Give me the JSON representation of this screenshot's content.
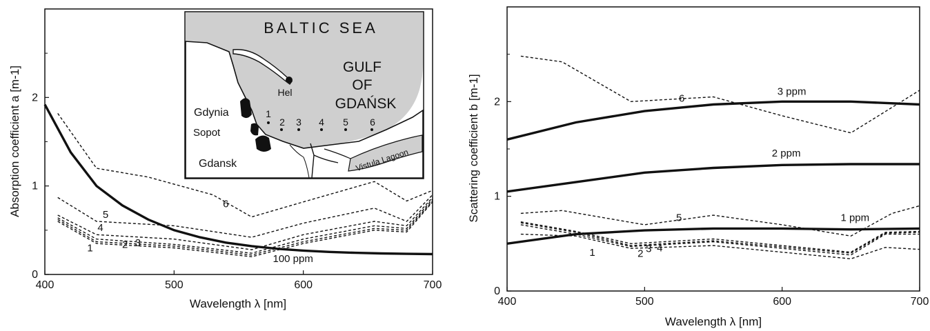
{
  "chart_data": [
    {
      "type": "line",
      "xlabel": "Wavelength  λ  [nm]",
      "ylabel": "Absorption coefficient  a   [m-1]",
      "xlim": [
        400,
        700
      ],
      "ylim": [
        0,
        3
      ],
      "xticks": [
        "400",
        "500",
        "600",
        "700"
      ],
      "yticks": [
        "0",
        "1",
        "2"
      ],
      "grid": false,
      "series": [
        {
          "name": "100 ppm",
          "style": "solid-thick",
          "label_at": [
            592,
            0.14
          ],
          "x": [
            400,
            420,
            440,
            460,
            480,
            500,
            520,
            540,
            560,
            580,
            600,
            620,
            640,
            660,
            680,
            700
          ],
          "y": [
            1.92,
            1.38,
            1.0,
            0.78,
            0.62,
            0.5,
            0.42,
            0.36,
            0.32,
            0.29,
            0.27,
            0.255,
            0.245,
            0.238,
            0.233,
            0.23
          ]
        },
        {
          "name": "1",
          "style": "dashed",
          "label_at": [
            435,
            0.26
          ],
          "x": [
            410,
            440,
            500,
            560,
            600,
            655,
            680,
            700
          ],
          "y": [
            0.6,
            0.35,
            0.3,
            0.2,
            0.35,
            0.5,
            0.48,
            0.82
          ]
        },
        {
          "name": "2",
          "style": "dashed",
          "label_at": [
            462,
            0.3
          ],
          "x": [
            410,
            440,
            500,
            560,
            600,
            655,
            680,
            700
          ],
          "y": [
            0.62,
            0.37,
            0.32,
            0.22,
            0.37,
            0.52,
            0.5,
            0.83
          ]
        },
        {
          "name": "3",
          "style": "dashed",
          "label_at": [
            472,
            0.32
          ],
          "x": [
            410,
            440,
            500,
            560,
            600,
            655,
            680,
            700
          ],
          "y": [
            0.64,
            0.4,
            0.34,
            0.24,
            0.4,
            0.55,
            0.52,
            0.85
          ]
        },
        {
          "name": "4",
          "style": "dashed",
          "label_at": [
            443,
            0.49
          ],
          "x": [
            410,
            440,
            500,
            560,
            600,
            655,
            680,
            700
          ],
          "y": [
            0.67,
            0.45,
            0.4,
            0.28,
            0.45,
            0.6,
            0.55,
            0.87
          ]
        },
        {
          "name": "5",
          "style": "dashed",
          "label_at": [
            447,
            0.64
          ],
          "x": [
            410,
            440,
            500,
            560,
            600,
            655,
            680,
            700
          ],
          "y": [
            0.87,
            0.6,
            0.55,
            0.42,
            0.58,
            0.75,
            0.6,
            0.9
          ]
        },
        {
          "name": "6",
          "style": "dashed",
          "label_at": [
            540,
            0.76
          ],
          "x": [
            410,
            440,
            480,
            530,
            560,
            600,
            655,
            680,
            700
          ],
          "y": [
            1.82,
            1.2,
            1.1,
            0.9,
            0.65,
            0.82,
            1.05,
            0.83,
            0.95
          ]
        }
      ]
    },
    {
      "type": "line",
      "xlabel": "Wavelength  λ  [nm]",
      "ylabel": "Scattering coefficient  b  [m-1]",
      "xlim": [
        400,
        700
      ],
      "ylim": [
        0,
        3
      ],
      "xticks": [
        "400",
        "500",
        "600",
        "700"
      ],
      "yticks": [
        "0",
        "1",
        "2"
      ],
      "grid": false,
      "series": [
        {
          "name": "3 ppm",
          "style": "solid-thick",
          "label_at": [
            607,
            2.07
          ],
          "x": [
            400,
            450,
            500,
            550,
            600,
            650,
            700
          ],
          "y": [
            1.6,
            1.78,
            1.9,
            1.97,
            2.0,
            2.0,
            1.97
          ]
        },
        {
          "name": "2 ppm",
          "style": "solid-thick",
          "label_at": [
            603,
            1.42
          ],
          "x": [
            400,
            450,
            500,
            550,
            600,
            650,
            700
          ],
          "y": [
            1.05,
            1.15,
            1.25,
            1.3,
            1.33,
            1.34,
            1.34
          ]
        },
        {
          "name": "1 ppm",
          "style": "solid-thick",
          "label_at": [
            653,
            0.74
          ],
          "x": [
            400,
            450,
            500,
            550,
            600,
            650,
            700
          ],
          "y": [
            0.5,
            0.6,
            0.64,
            0.66,
            0.66,
            0.65,
            0.66
          ]
        },
        {
          "name": "1",
          "style": "dashed",
          "label_at": [
            462,
            0.37
          ],
          "x": [
            410,
            450,
            490,
            550,
            650,
            675,
            700
          ],
          "y": [
            0.6,
            0.58,
            0.45,
            0.48,
            0.34,
            0.46,
            0.44
          ]
        },
        {
          "name": "2",
          "style": "dashed",
          "label_at": [
            497,
            0.36
          ],
          "x": [
            410,
            450,
            490,
            550,
            650,
            675,
            700
          ],
          "y": [
            0.7,
            0.6,
            0.47,
            0.52,
            0.38,
            0.6,
            0.6
          ]
        },
        {
          "name": "3",
          "style": "dashed",
          "label_at": [
            503,
            0.41
          ],
          "x": [
            410,
            450,
            490,
            550,
            650,
            675,
            700
          ],
          "y": [
            0.72,
            0.62,
            0.48,
            0.53,
            0.4,
            0.61,
            0.62
          ]
        },
        {
          "name": "4",
          "style": "dashed",
          "label_at": [
            511,
            0.42
          ],
          "x": [
            410,
            450,
            490,
            550,
            650,
            675,
            700
          ],
          "y": [
            0.73,
            0.63,
            0.5,
            0.55,
            0.41,
            0.62,
            0.63
          ]
        },
        {
          "name": "5",
          "style": "dashed",
          "label_at": [
            525,
            0.74
          ],
          "x": [
            410,
            440,
            500,
            550,
            600,
            650,
            680,
            700
          ],
          "y": [
            0.82,
            0.85,
            0.7,
            0.8,
            0.7,
            0.58,
            0.82,
            0.9
          ]
        },
        {
          "name": "6",
          "style": "dashed",
          "label_at": [
            527,
            2.0
          ],
          "x": [
            410,
            440,
            490,
            550,
            600,
            650,
            700
          ],
          "y": [
            2.48,
            2.42,
            2.0,
            2.05,
            1.85,
            1.67,
            2.12
          ]
        }
      ]
    }
  ],
  "inset_map": {
    "sea_label": "BALTIC SEA",
    "gulf_label_1": "GULF",
    "gulf_label_2": "OF",
    "gulf_label_3": "GDAŃSK",
    "towns": [
      "Hel",
      "Gdynia",
      "Sopot",
      "Gdansk"
    ],
    "lagoon_label": "Vistula Lagoon",
    "stations": [
      "1",
      "2",
      "3",
      "4",
      "5",
      "6"
    ]
  }
}
